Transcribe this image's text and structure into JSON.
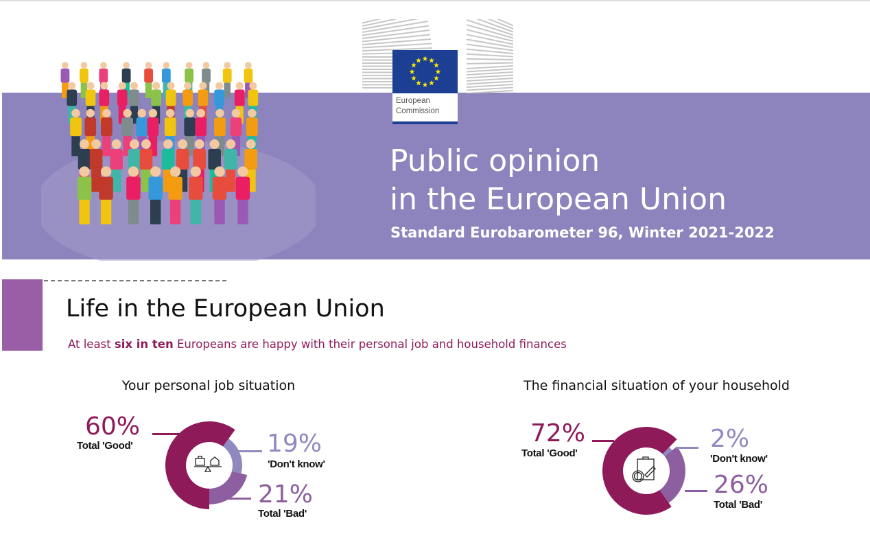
{
  "header": {
    "logo_text": [
      "European",
      "Commission"
    ],
    "title_lines": [
      "Public opinion",
      "in the European Union"
    ],
    "subtitle": "Standard Eurobarometer 96, Winter 2021-2022"
  },
  "section": {
    "title": "Life in the European Union",
    "subtitle_pre": "At least ",
    "subtitle_bold": "six in ten",
    "subtitle_post": " Europeans are happy with their personal job and household finances"
  },
  "colors": {
    "good": "#8e1a5a",
    "dont_know": "#9089c0",
    "bad": "#8e5fa0",
    "band": "#8e84bd"
  },
  "chart_data": [
    {
      "type": "pie",
      "title": "Your personal job situation",
      "icon": "briefcase-house-scale-icon",
      "slices": [
        {
          "label": "Total 'Good'",
          "value": 60,
          "display": "60%"
        },
        {
          "label": "'Don't know'",
          "value": 19,
          "display": "19%"
        },
        {
          "label": "Total 'Bad'",
          "value": 21,
          "display": "21%"
        }
      ]
    },
    {
      "type": "pie",
      "title": "The financial situation of your household",
      "icon": "clipboard-euro-pencil-icon",
      "slices": [
        {
          "label": "Total 'Good'",
          "value": 72,
          "display": "72%"
        },
        {
          "label": "'Don't know'",
          "value": 2,
          "display": "2%"
        },
        {
          "label": "Total 'Bad'",
          "value": 26,
          "display": "26%"
        }
      ]
    }
  ]
}
